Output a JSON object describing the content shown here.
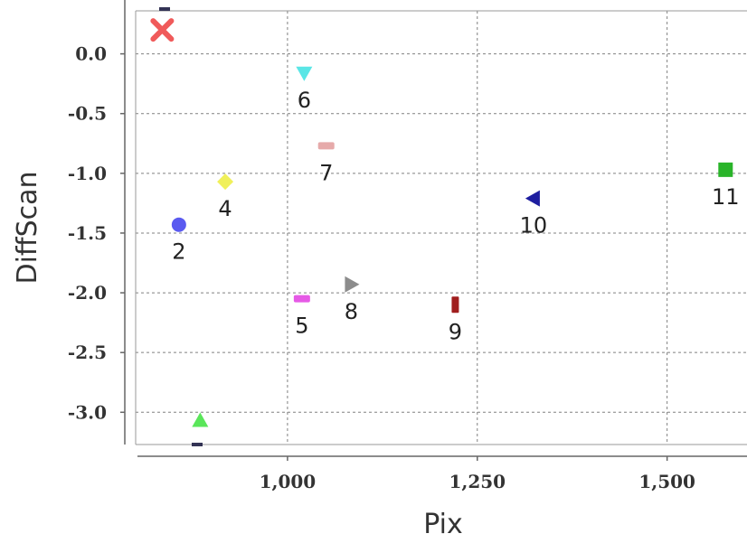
{
  "chart_data": {
    "type": "scatter",
    "title": "",
    "xlabel": "Pix",
    "ylabel": "DiffScan",
    "xlim": [
      800,
      1610
    ],
    "ylim": [
      -3.27,
      0.36
    ],
    "x_ticks": [
      1000,
      1250,
      1500
    ],
    "x_tick_labels": [
      "1,000",
      "1,250",
      "1,500"
    ],
    "y_ticks": [
      0.0,
      -0.5,
      -1.0,
      -1.5,
      -2.0,
      -2.5,
      -3.0
    ],
    "y_tick_labels": [
      "0.0",
      "-0.5",
      "-1.0",
      "-1.5",
      "-2.0",
      "-2.5",
      "-3.0"
    ],
    "grid": true,
    "legend": "none",
    "points": [
      {
        "label": "",
        "x": 835,
        "y": 0.2,
        "marker": "x",
        "color": "#f05a5a"
      },
      {
        "label": "2",
        "x": 857,
        "y": -1.43,
        "marker": "circle",
        "color": "#5a5af0"
      },
      {
        "label": "",
        "x": 885,
        "y": -3.07,
        "marker": "triangle-up",
        "color": "#5ae65a"
      },
      {
        "label": "4",
        "x": 918,
        "y": -1.07,
        "marker": "diamond",
        "color": "#f0f05a"
      },
      {
        "label": "5",
        "x": 1019,
        "y": -2.05,
        "marker": "hbar",
        "color": "#e65ae6"
      },
      {
        "label": "6",
        "x": 1022,
        "y": -0.16,
        "marker": "triangle-down",
        "color": "#5ae6e6"
      },
      {
        "label": "7",
        "x": 1051,
        "y": -0.77,
        "marker": "hbar",
        "color": "#e6aaaa"
      },
      {
        "label": "8",
        "x": 1084,
        "y": -1.93,
        "marker": "triangle-right",
        "color": "#8c8c8c"
      },
      {
        "label": "9",
        "x": 1221,
        "y": -2.1,
        "marker": "vbar",
        "color": "#a01e1e"
      },
      {
        "label": "10",
        "x": 1324,
        "y": -1.21,
        "marker": "triangle-left",
        "color": "#1e1ea0"
      },
      {
        "label": "11",
        "x": 1577,
        "y": -0.97,
        "marker": "square",
        "color": "#2ab42a"
      }
    ]
  }
}
